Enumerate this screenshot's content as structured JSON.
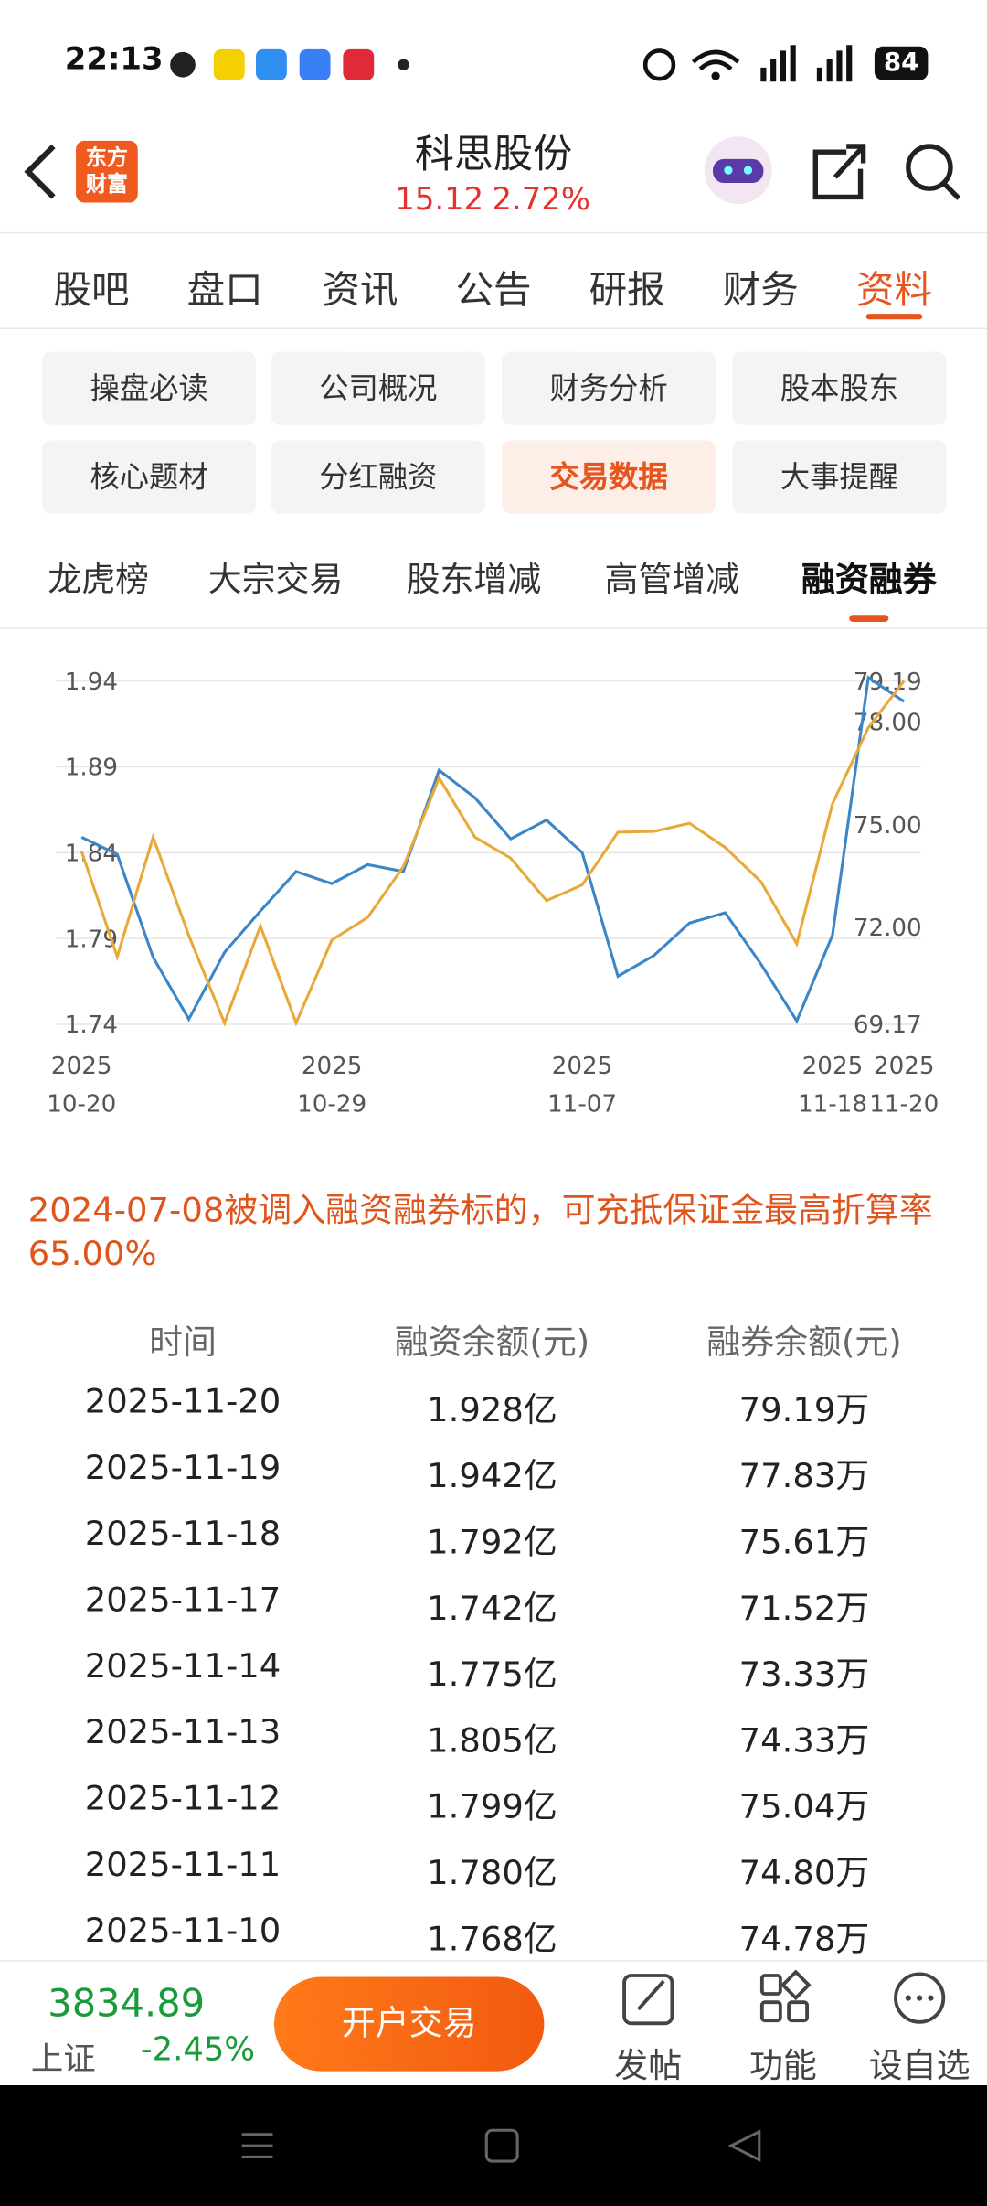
{
  "status_bar": {
    "time": "22:13",
    "battery": "84"
  },
  "header": {
    "logo": "东方\n财富",
    "title": "科思股份",
    "price": "15.12",
    "change": "2.72%"
  },
  "tabs": {
    "items": [
      "股吧",
      "盘口",
      "资讯",
      "公告",
      "研报",
      "财务",
      "资料"
    ],
    "active": 6
  },
  "sub_tabs": {
    "items": [
      "操盘必读",
      "公司概况",
      "财务分析",
      "股本股东",
      "核心题材",
      "分红融资",
      "交易数据",
      "大事提醒"
    ],
    "active": 6
  },
  "section_tabs": {
    "items": [
      "龙虎榜",
      "大宗交易",
      "股东增减",
      "高管增减",
      "融资融券"
    ],
    "active": 4
  },
  "chart_data": {
    "type": "line",
    "categories": [
      "2025\n10-20",
      null,
      null,
      null,
      null,
      null,
      null,
      "2025\n10-29",
      null,
      null,
      null,
      null,
      null,
      null,
      "2025\n11-07",
      null,
      null,
      null,
      null,
      null,
      null,
      "2025\n11-18",
      null,
      "2025\n11-20"
    ],
    "series": [
      {
        "color": "#3a86c8",
        "values": [
          1.849,
          1.839,
          1.779,
          1.743,
          1.782,
          1.806,
          1.829,
          1.822,
          1.833,
          1.829,
          1.888,
          1.872,
          1.848,
          1.859,
          1.84,
          1.768,
          1.78,
          1.799,
          1.805,
          1.775,
          1.742,
          1.792,
          1.942,
          1.928
        ]
      },
      {
        "color": "#e8a93a",
        "axis": "y2",
        "values": [
          74.22,
          71.14,
          74.63,
          71.76,
          69.21,
          72.04,
          69.21,
          71.63,
          72.29,
          73.77,
          76.36,
          74.63,
          74.02,
          72.78,
          73.24,
          74.78,
          74.8,
          75.04,
          74.33,
          73.33,
          71.52,
          75.61,
          77.83,
          79.19
        ]
      }
    ],
    "ylim": [
      1.74,
      1.94
    ],
    "yticks": [
      1.74,
      1.79,
      1.84,
      1.89,
      1.94
    ],
    "y2lim": [
      69.17,
      79.19
    ],
    "y2ticks": [
      69.17,
      {
        "value": 72,
        "label": "72.00"
      },
      {
        "value": 75,
        "label": "75.00"
      },
      {
        "value": 78,
        "label": "78.00"
      },
      79.19
    ],
    "grid": true
  },
  "note": "2024-07-08被调入融资融券标的，可充抵保证金最高折算率65.00%",
  "table": {
    "headers": [
      "时间",
      "融资余额(元)",
      "融券余额(元)"
    ],
    "rows": [
      [
        "2025-11-20",
        "1.928亿",
        "79.19万"
      ],
      [
        "2025-11-19",
        "1.942亿",
        "77.83万"
      ],
      [
        "2025-11-18",
        "1.792亿",
        "75.61万"
      ],
      [
        "2025-11-17",
        "1.742亿",
        "71.52万"
      ],
      [
        "2025-11-14",
        "1.775亿",
        "73.33万"
      ],
      [
        "2025-11-13",
        "1.805亿",
        "74.33万"
      ],
      [
        "2025-11-12",
        "1.799亿",
        "75.04万"
      ],
      [
        "2025-11-11",
        "1.780亿",
        "74.80万"
      ],
      [
        "2025-11-10",
        "1.768亿",
        "74.78万"
      ]
    ]
  },
  "footer": {
    "index_value": "3834.89",
    "index_name": "上证",
    "index_change": "-2.45%",
    "button": "开户交易",
    "actions": [
      "发帖",
      "功能",
      "设自选"
    ]
  }
}
